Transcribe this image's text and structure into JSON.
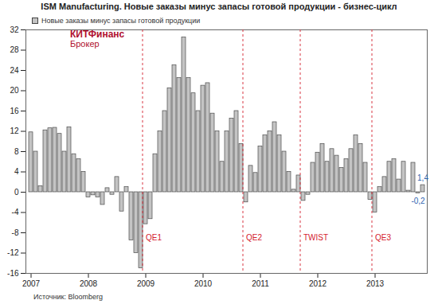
{
  "chart_data": {
    "type": "bar",
    "title": "ISM Manufacturing. Новые заказы минус запасы готовой продукции - бизнес-цикл",
    "caption": "Источник: Bloomberg",
    "logo": [
      "КИТФинанс",
      "Брокер"
    ],
    "categories": [
      "2007",
      null,
      null,
      null,
      null,
      null,
      null,
      null,
      null,
      null,
      null,
      null,
      "2008",
      null,
      null,
      null,
      null,
      null,
      null,
      null,
      null,
      null,
      null,
      null,
      "2009",
      null,
      null,
      null,
      null,
      null,
      null,
      null,
      null,
      null,
      null,
      null,
      "2010",
      null,
      null,
      null,
      null,
      null,
      null,
      null,
      null,
      null,
      null,
      null,
      "2011",
      null,
      null,
      null,
      null,
      null,
      null,
      null,
      null,
      null,
      null,
      null,
      "2012",
      null,
      null,
      null,
      null,
      null,
      null,
      null,
      null,
      null,
      null,
      null,
      "2013",
      null,
      null,
      null,
      null,
      null,
      null,
      null,
      null,
      null,
      null
    ],
    "series": [
      {
        "name": "Новые заказы минус запасы готовой продукции",
        "color": "#c4c4c4",
        "values": [
          11.8,
          8.0,
          1.2,
          12.2,
          12.6,
          12.7,
          11.5,
          8.0,
          12.8,
          7.5,
          6.5,
          4.0,
          -1.0,
          -0.6,
          -1.0,
          -2.5,
          0.8,
          -0.5,
          3.0,
          -3.8,
          1.0,
          -9.5,
          -12.0,
          -15.0,
          -6.3,
          -5.3,
          7.5,
          12.0,
          16.0,
          20.5,
          25.0,
          22.5,
          30.5,
          22.5,
          19.5,
          16.0,
          21.0,
          21.5,
          15.5,
          12.0,
          6.0,
          12.0,
          14.5,
          16.0,
          9.5,
          -2.0,
          5.2,
          3.8,
          9.0,
          11.2,
          12.0,
          13.8,
          11.2,
          8.0,
          4.0,
          0.5,
          3.3,
          -1.7,
          -0.5,
          5.8,
          7.8,
          9.5,
          6.0,
          8.5,
          7.2,
          4.8,
          6.5,
          8.5,
          11.2,
          9.5,
          5.8,
          -1.5,
          -4.0,
          1.0,
          3.0,
          6.0,
          6.5,
          2.5,
          6.0,
          0.3,
          5.8,
          -0.2,
          1.4
        ],
        "value_labels": [
          null,
          null,
          null,
          null,
          null,
          null,
          null,
          null,
          null,
          null,
          null,
          null,
          null,
          null,
          null,
          null,
          null,
          null,
          null,
          null,
          null,
          null,
          null,
          null,
          null,
          null,
          null,
          null,
          null,
          null,
          null,
          null,
          null,
          null,
          null,
          null,
          null,
          null,
          null,
          null,
          null,
          null,
          null,
          null,
          null,
          null,
          null,
          null,
          null,
          null,
          null,
          null,
          null,
          null,
          null,
          null,
          null,
          null,
          null,
          null,
          null,
          null,
          null,
          null,
          null,
          null,
          null,
          null,
          null,
          null,
          null,
          null,
          null,
          null,
          null,
          null,
          null,
          null,
          null,
          null,
          null,
          "-0,2",
          "1,4"
        ]
      }
    ],
    "events": [
      null,
      null,
      null,
      null,
      null,
      null,
      null,
      null,
      null,
      null,
      null,
      null,
      null,
      null,
      null,
      null,
      null,
      null,
      null,
      null,
      null,
      null,
      null,
      null,
      "QE1",
      null,
      null,
      null,
      null,
      null,
      null,
      null,
      null,
      null,
      null,
      null,
      null,
      null,
      null,
      null,
      null,
      null,
      null,
      null,
      null,
      "QE2",
      null,
      null,
      null,
      null,
      null,
      null,
      null,
      null,
      null,
      null,
      null,
      "TWIST",
      null,
      null,
      null,
      null,
      null,
      null,
      null,
      null,
      null,
      null,
      null,
      null,
      null,
      null,
      "QE3",
      null,
      null,
      null,
      null,
      null,
      null,
      null,
      null,
      null,
      null
    ],
    "ylim": [
      -16,
      32
    ],
    "yticks": [
      -16,
      -12,
      -8,
      -4,
      0,
      4,
      8,
      12,
      16,
      20,
      24,
      28,
      32
    ],
    "grid": false,
    "legend": "top-left",
    "data_labels": true
  }
}
